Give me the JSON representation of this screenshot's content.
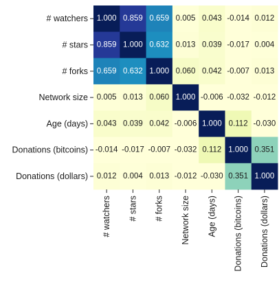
{
  "chart_data": {
    "type": "heatmap",
    "title": "",
    "xlabel": "",
    "ylabel": "",
    "rows": [
      "# watchers",
      "# stars",
      "# forks",
      "Network size",
      "Age (days)",
      "Donations (bitcoins)",
      "Donations (dollars)"
    ],
    "columns": [
      "# watchers",
      "# stars",
      "# forks",
      "Network size",
      "Age (days)",
      "Donations (bitcoins)",
      "Donations (dollars)"
    ],
    "values": [
      [
        1.0,
        0.859,
        0.659,
        0.005,
        0.043,
        -0.014,
        0.012
      ],
      [
        0.859,
        1.0,
        0.632,
        0.013,
        0.039,
        -0.017,
        0.004
      ],
      [
        0.659,
        0.632,
        1.0,
        0.06,
        0.042,
        -0.007,
        0.013
      ],
      [
        0.005,
        0.013,
        0.06,
        1.0,
        -0.006,
        -0.032,
        -0.012
      ],
      [
        0.043,
        0.039,
        0.042,
        -0.006,
        1.0,
        0.112,
        -0.03
      ],
      [
        -0.014,
        -0.017,
        -0.007,
        -0.032,
        0.112,
        1.0,
        0.351
      ],
      [
        0.012,
        0.004,
        0.013,
        -0.012,
        -0.03,
        0.351,
        1.0
      ]
    ],
    "value_format": "3 decimals",
    "colormap": "YlGnBu",
    "colormap_stops": [
      "#ffffd9",
      "#edf8b1",
      "#c7e9b4",
      "#7fcdbb",
      "#41b6c4",
      "#1d91c0",
      "#225ea8",
      "#253494",
      "#081d58"
    ],
    "color_range": [
      0,
      1
    ],
    "colorbar": false,
    "grid": false
  }
}
